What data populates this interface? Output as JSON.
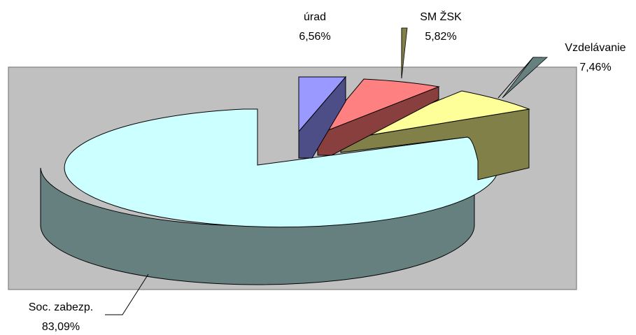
{
  "chart_data": {
    "type": "pie",
    "variant": "3d-exploded",
    "slices": [
      {
        "name": "úrad",
        "value_label": "6,56%",
        "value": 6.56,
        "top_color": "#9999ff",
        "side_color": "#4d4d88"
      },
      {
        "name": "SM ŽSK",
        "value_label": "5,82%",
        "value": 5.82,
        "top_color": "#ff8080",
        "side_color": "#8a3f3f"
      },
      {
        "name": "Vzdelávanie",
        "value_label": "7,46%",
        "value": 7.46,
        "top_color": "#ffff99",
        "side_color": "#808048"
      },
      {
        "name": "Soc. zabezp.",
        "value_label": "83,09%",
        "value": 83.09,
        "top_color": "#ccffff",
        "side_color": "#668080"
      }
    ],
    "plot_area_color": "#c0c0c0",
    "legend": "none"
  }
}
